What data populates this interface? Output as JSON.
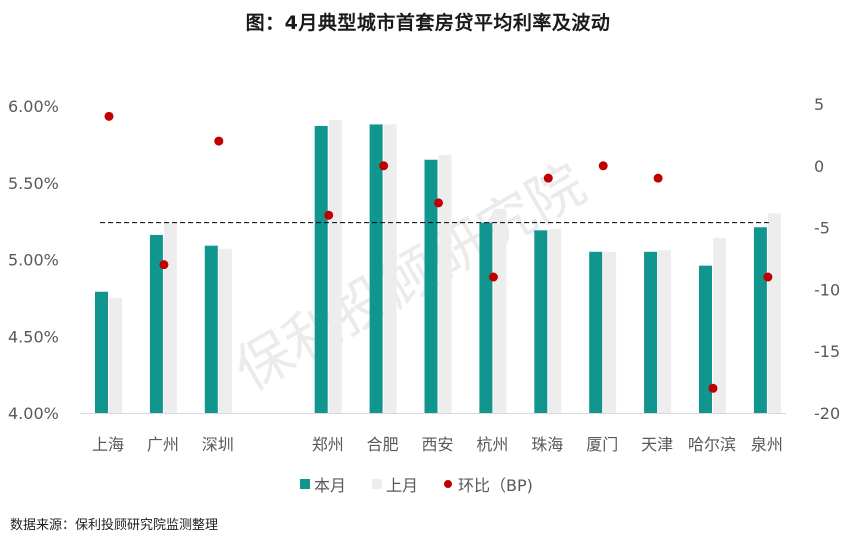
{
  "title": "图：4月典型城市首套房贷平均利率及波动",
  "source": "数据来源：保利投顾研究院监测整理",
  "watermark": "保利投顾研究院",
  "colors": {
    "current": "#11968F",
    "previous": "#EDEDED",
    "change": "#C00000",
    "axis_text": "#595959",
    "avg_line": "#000000"
  },
  "legend": [
    {
      "key": "current",
      "label": "本月"
    },
    {
      "key": "previous",
      "label": "上月"
    },
    {
      "key": "change",
      "label": "环比（BP)"
    }
  ],
  "chart_data": {
    "type": "bar",
    "title": "图：4月典型城市首套房贷平均利率及波动",
    "categories": [
      "上海",
      "广州",
      "深圳",
      "郑州",
      "合肥",
      "西安",
      "杭州",
      "珠海",
      "厦门",
      "天津",
      "哈尔滨",
      "泉州"
    ],
    "series": [
      {
        "name": "本月",
        "type": "bar",
        "axis": "left",
        "values": [
          4.79,
          5.16,
          5.09,
          5.87,
          5.88,
          5.65,
          5.24,
          5.19,
          5.05,
          5.05,
          4.96,
          5.21
        ]
      },
      {
        "name": "上月",
        "type": "bar",
        "axis": "left",
        "values": [
          4.75,
          5.24,
          5.07,
          5.91,
          5.88,
          5.68,
          5.33,
          5.2,
          5.05,
          5.06,
          5.14,
          5.3
        ]
      },
      {
        "name": "环比（BP)",
        "type": "scatter",
        "axis": "right",
        "values": [
          4,
          -8,
          2,
          -4,
          0,
          -3,
          -9,
          -1,
          0,
          -1,
          -18,
          -9
        ]
      }
    ],
    "average_line": {
      "value": 5.24,
      "style": "dashed",
      "from_category": 0,
      "to_category": 11
    },
    "left_axis": {
      "ticks": [
        "4.00%",
        "4.50%",
        "5.00%",
        "5.50%",
        "6.00%"
      ],
      "ylim": [
        4.0,
        6.0
      ]
    },
    "right_axis": {
      "ticks": [
        "-20",
        "-15",
        "-10",
        "-5",
        "0",
        "5"
      ],
      "ylim": [
        -20,
        5
      ]
    },
    "xlabel": "",
    "ylabel": "",
    "grid": false,
    "legend_position": "bottom",
    "category_gap_after": [
      2
    ]
  }
}
